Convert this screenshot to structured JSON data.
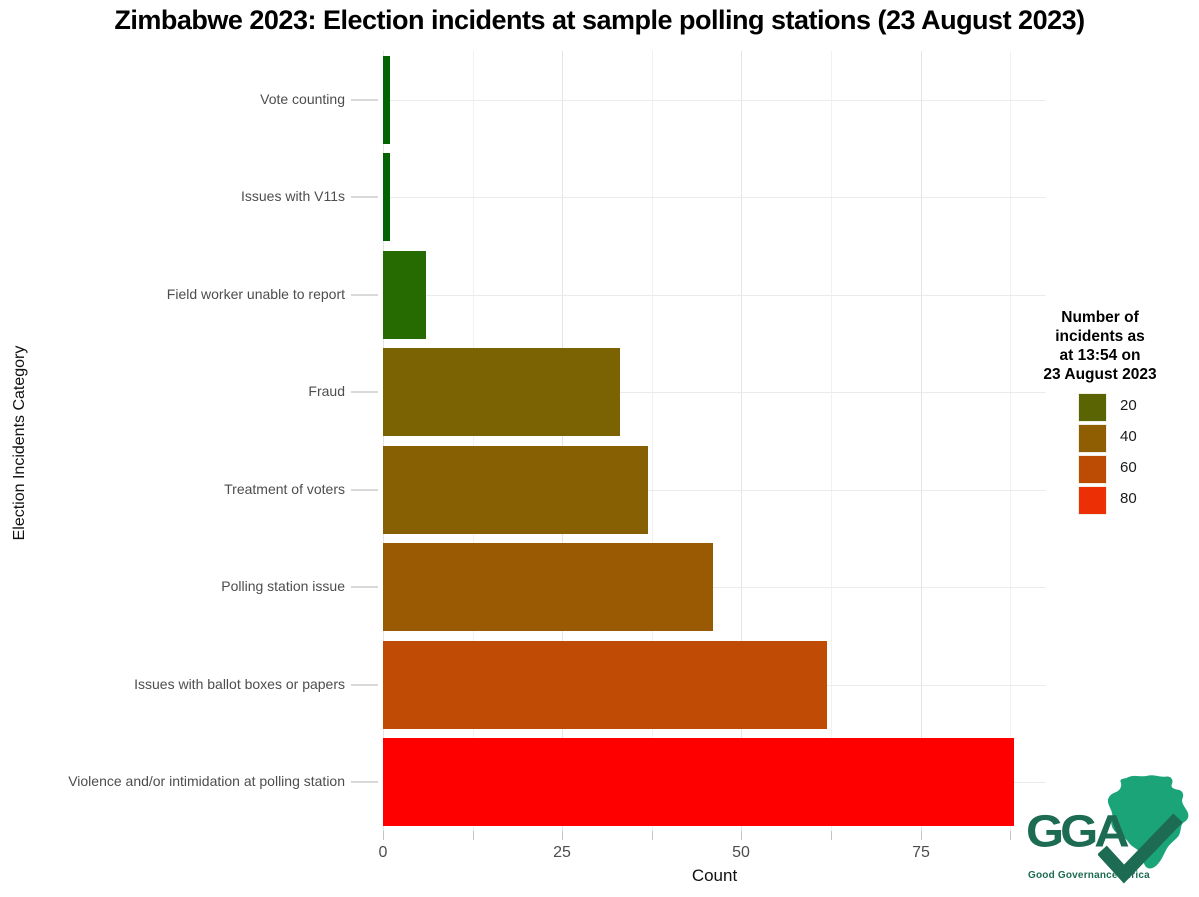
{
  "page": {
    "background": "#FFFFFF"
  },
  "chart_data": {
    "type": "bar",
    "orientation": "horizontal",
    "title": "Zimbabwe 2023: Election incidents at sample polling stations (23 August 2023)",
    "xlabel": "Count",
    "ylabel": "Election Incidents Category",
    "xlim": [
      0,
      92.5
    ],
    "x_major_ticks": [
      0,
      25,
      50,
      75
    ],
    "x_minor_ticks": [
      12.5,
      37.5,
      62.5,
      87.5
    ],
    "grid": "on",
    "categories": [
      "Vote counting",
      "Issues with V11s",
      "Field worker unable to report",
      "Fraud",
      "Treatment of voters",
      "Polling station issue",
      "Issues with ballot boxes or papers",
      "Violence and/or intimidation at polling station"
    ],
    "values": [
      1,
      1,
      6,
      33,
      37,
      46,
      62,
      88
    ],
    "bar_colors": [
      "#016400",
      "#016400",
      "#266B01",
      "#7B6203",
      "#866002",
      "#9A5A03",
      "#BF4B04",
      "#FE0000"
    ],
    "legend": {
      "position": "right",
      "title_lines": [
        "Number of",
        "incidents as",
        "at 13:54 on",
        "23 August 2023"
      ],
      "entries": [
        {
          "label": "20",
          "color": "#5A6403"
        },
        {
          "label": "40",
          "color": "#8F5E02"
        },
        {
          "label": "60",
          "color": "#BC4B04"
        },
        {
          "label": "80",
          "color": "#ED2F06"
        }
      ]
    }
  },
  "logo": {
    "acronym": "GGA",
    "tagline": "Good Governance Africa",
    "text_color": "#1D6B52",
    "africa_color": "#1BA478"
  }
}
